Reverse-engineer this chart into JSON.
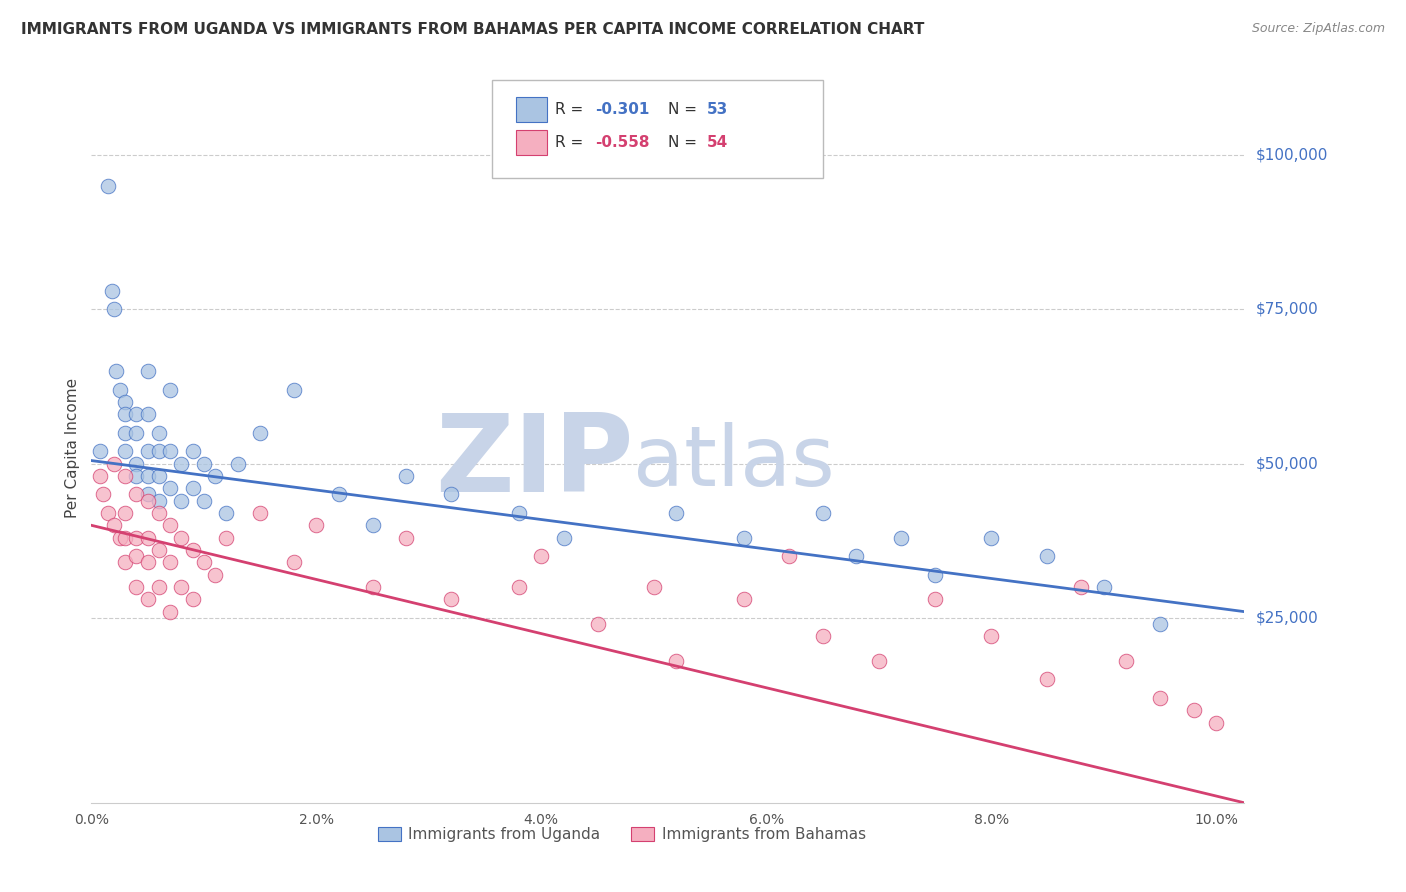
{
  "title": "IMMIGRANTS FROM UGANDA VS IMMIGRANTS FROM BAHAMAS PER CAPITA INCOME CORRELATION CHART",
  "source": "Source: ZipAtlas.com",
  "ylabel": "Per Capita Income",
  "ytick_labels": [
    "$25,000",
    "$50,000",
    "$75,000",
    "$100,000"
  ],
  "ytick_values": [
    25000,
    50000,
    75000,
    100000
  ],
  "legend_label1": "Immigrants from Uganda",
  "legend_label2": "Immigrants from Bahamas",
  "legend_r1_text": "R = ",
  "legend_r1_val": "-0.301",
  "legend_n1_text": "N = ",
  "legend_n1_val": "53",
  "legend_r2_text": "R = ",
  "legend_r2_val": "-0.558",
  "legend_n2_text": "N = ",
  "legend_n2_val": "54",
  "color_uganda": "#aac4e2",
  "color_bahamas": "#f5afc0",
  "line_color_uganda": "#4472c4",
  "line_color_bahamas": "#d44070",
  "watermark_zip": "ZIP",
  "watermark_atlas": "atlas",
  "watermark_color_zip": "#c8d4e8",
  "watermark_color_atlas": "#c8d4e8",
  "background_color": "#ffffff",
  "grid_color": "#cccccc",
  "xlim": [
    0.0,
    0.1025
  ],
  "ylim": [
    -5000,
    110000
  ],
  "uganda_x": [
    0.0008,
    0.0015,
    0.0018,
    0.002,
    0.0022,
    0.0025,
    0.003,
    0.003,
    0.003,
    0.003,
    0.004,
    0.004,
    0.004,
    0.004,
    0.005,
    0.005,
    0.005,
    0.005,
    0.005,
    0.006,
    0.006,
    0.006,
    0.006,
    0.007,
    0.007,
    0.007,
    0.008,
    0.008,
    0.009,
    0.009,
    0.01,
    0.01,
    0.011,
    0.012,
    0.013,
    0.015,
    0.018,
    0.022,
    0.025,
    0.028,
    0.032,
    0.038,
    0.042,
    0.052,
    0.058,
    0.065,
    0.068,
    0.072,
    0.075,
    0.08,
    0.085,
    0.09,
    0.095
  ],
  "uganda_y": [
    52000,
    95000,
    78000,
    75000,
    65000,
    62000,
    60000,
    58000,
    55000,
    52000,
    58000,
    55000,
    50000,
    48000,
    65000,
    58000,
    52000,
    48000,
    45000,
    55000,
    52000,
    48000,
    44000,
    62000,
    52000,
    46000,
    50000,
    44000,
    52000,
    46000,
    50000,
    44000,
    48000,
    42000,
    50000,
    55000,
    62000,
    45000,
    40000,
    48000,
    45000,
    42000,
    38000,
    42000,
    38000,
    42000,
    35000,
    38000,
    32000,
    38000,
    35000,
    30000,
    24000
  ],
  "bahamas_x": [
    0.0008,
    0.001,
    0.0015,
    0.002,
    0.002,
    0.0025,
    0.003,
    0.003,
    0.003,
    0.003,
    0.004,
    0.004,
    0.004,
    0.004,
    0.005,
    0.005,
    0.005,
    0.005,
    0.006,
    0.006,
    0.006,
    0.007,
    0.007,
    0.007,
    0.008,
    0.008,
    0.009,
    0.009,
    0.01,
    0.011,
    0.012,
    0.015,
    0.018,
    0.02,
    0.025,
    0.028,
    0.032,
    0.038,
    0.04,
    0.045,
    0.05,
    0.052,
    0.058,
    0.062,
    0.065,
    0.07,
    0.075,
    0.08,
    0.085,
    0.088,
    0.092,
    0.095,
    0.098,
    0.1
  ],
  "bahamas_y": [
    48000,
    45000,
    42000,
    50000,
    40000,
    38000,
    48000,
    42000,
    38000,
    34000,
    45000,
    38000,
    35000,
    30000,
    44000,
    38000,
    34000,
    28000,
    42000,
    36000,
    30000,
    40000,
    34000,
    26000,
    38000,
    30000,
    36000,
    28000,
    34000,
    32000,
    38000,
    42000,
    34000,
    40000,
    30000,
    38000,
    28000,
    30000,
    35000,
    24000,
    30000,
    18000,
    28000,
    35000,
    22000,
    18000,
    28000,
    22000,
    15000,
    30000,
    18000,
    12000,
    10000,
    8000
  ],
  "trend_uganda_x0": 0.0,
  "trend_uganda_y0": 50500,
  "trend_uganda_x1": 0.1025,
  "trend_uganda_y1": 26000,
  "trend_bahamas_x0": 0.0,
  "trend_bahamas_y0": 40000,
  "trend_bahamas_x1": 0.1025,
  "trend_bahamas_y1": -5000
}
